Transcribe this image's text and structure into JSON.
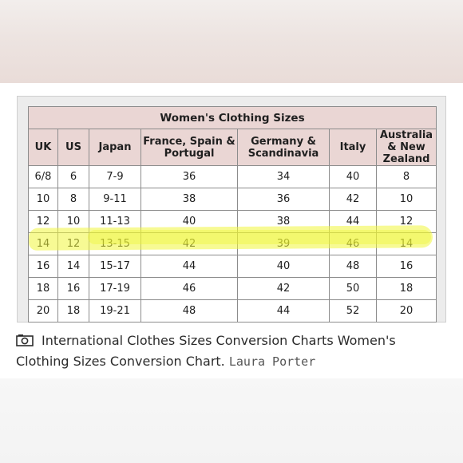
{
  "table": {
    "title": "Women's Clothing Sizes",
    "columns": [
      "UK",
      "US",
      "Japan",
      "France, Spain & Portugal",
      "Germany & Scandinavia",
      "Italy",
      "Australia & New Zealand"
    ],
    "rows": [
      [
        "6/8",
        "6",
        "7-9",
        "36",
        "34",
        "40",
        "8"
      ],
      [
        "10",
        "8",
        "9-11",
        "38",
        "36",
        "42",
        "10"
      ],
      [
        "12",
        "10",
        "11-13",
        "40",
        "38",
        "44",
        "12"
      ],
      [
        "14",
        "12",
        "13-15",
        "42",
        "39",
        "46",
        "14"
      ],
      [
        "16",
        "14",
        "15-17",
        "44",
        "40",
        "48",
        "16"
      ],
      [
        "18",
        "16",
        "17-19",
        "46",
        "42",
        "50",
        "18"
      ],
      [
        "20",
        "18",
        "19-21",
        "48",
        "44",
        "52",
        "20"
      ]
    ],
    "highlighted_row_index": 3,
    "header_bg": "#ead6d4",
    "highlight_color": "#f0f63c"
  },
  "caption": {
    "icon": "camera-icon",
    "text": "International Clothes Sizes Conversion Charts Women's Clothing Sizes Conversion Chart.",
    "author": "Laura Porter"
  }
}
